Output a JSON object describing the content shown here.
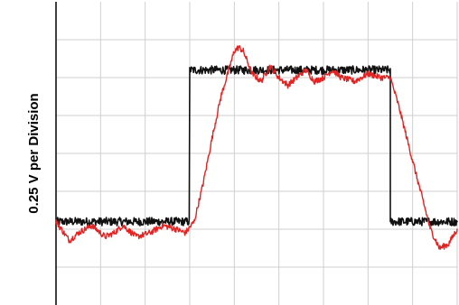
{
  "chart_data": {
    "type": "line",
    "title": "",
    "xlabel": "",
    "ylabel": "0.25 V per Division",
    "x_divisions": 9,
    "y_divisions": 8,
    "xlim": [
      0,
      9
    ],
    "ylim": [
      0,
      8
    ],
    "grid": true,
    "legend": "none",
    "series": [
      {
        "color": "#111111",
        "style": "square pulse with noise",
        "points": [
          [
            0,
            2.2
          ],
          [
            3.0,
            2.2
          ],
          [
            3.0,
            6.2
          ],
          [
            7.5,
            6.2
          ],
          [
            7.5,
            2.2
          ],
          [
            9,
            2.2
          ]
        ]
      },
      {
        "color": "#e32222",
        "style": "ringing response with noise",
        "points": [
          [
            0,
            2.2
          ],
          [
            0.3,
            1.7
          ],
          [
            0.5,
            1.9
          ],
          [
            0.8,
            2.1
          ],
          [
            1.1,
            1.8
          ],
          [
            1.3,
            1.9
          ],
          [
            1.5,
            2.1
          ],
          [
            1.8,
            1.8
          ],
          [
            2.1,
            1.9
          ],
          [
            2.4,
            2.1
          ],
          [
            2.7,
            2.0
          ],
          [
            2.9,
            1.9
          ],
          [
            3.1,
            2.2
          ],
          [
            3.3,
            3.2
          ],
          [
            3.5,
            4.4
          ],
          [
            3.7,
            5.5
          ],
          [
            3.9,
            6.3
          ],
          [
            4.0,
            6.7
          ],
          [
            4.1,
            6.8
          ],
          [
            4.2,
            6.7
          ],
          [
            4.4,
            6.1
          ],
          [
            4.6,
            5.9
          ],
          [
            4.8,
            6.3
          ],
          [
            5.0,
            6.0
          ],
          [
            5.2,
            5.8
          ],
          [
            5.4,
            6.0
          ],
          [
            5.6,
            6.2
          ],
          [
            5.8,
            5.9
          ],
          [
            6.0,
            6.0
          ],
          [
            6.2,
            6.2
          ],
          [
            6.4,
            6.0
          ],
          [
            6.7,
            5.9
          ],
          [
            7.0,
            6.1
          ],
          [
            7.3,
            6.0
          ],
          [
            7.5,
            6.0
          ],
          [
            7.7,
            5.2
          ],
          [
            8.0,
            3.8
          ],
          [
            8.2,
            2.9
          ],
          [
            8.4,
            2.0
          ],
          [
            8.6,
            1.5
          ],
          [
            8.8,
            1.6
          ],
          [
            9.0,
            2.0
          ]
        ]
      }
    ]
  }
}
